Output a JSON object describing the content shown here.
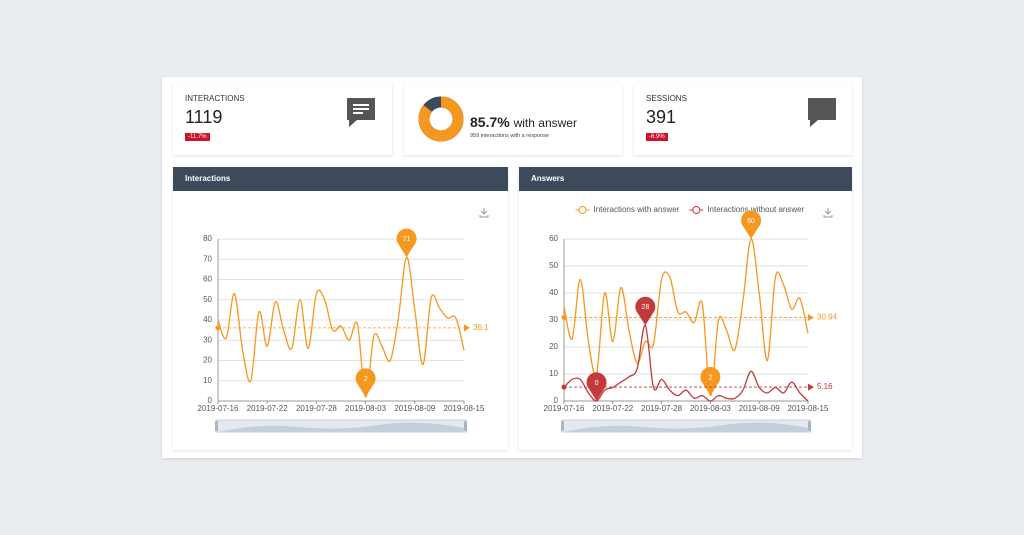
{
  "kpis": [
    {
      "label": "INTERACTIONS",
      "value": 1119,
      "change": "-11.7%"
    },
    {
      "percent": {
        "value": 85.7,
        "label": "85.7%"
      },
      "text": "with answer",
      "note": "959 interactions with a response"
    },
    {
      "label": "SESSIONS",
      "value": 391,
      "change": "-6.9%"
    }
  ],
  "chart_data": [
    {
      "type": "line",
      "title": "Interactions",
      "x": [
        "2019-07-16",
        "2019-07-17",
        "2019-07-18",
        "2019-07-19",
        "2019-07-20",
        "2019-07-21",
        "2019-07-22",
        "2019-07-23",
        "2019-07-24",
        "2019-07-25",
        "2019-07-26",
        "2019-07-27",
        "2019-07-28",
        "2019-07-29",
        "2019-07-30",
        "2019-07-31",
        "2019-08-01",
        "2019-08-02",
        "2019-08-03",
        "2019-08-04",
        "2019-08-05",
        "2019-08-06",
        "2019-08-07",
        "2019-08-08",
        "2019-08-09",
        "2019-08-10",
        "2019-08-11",
        "2019-08-12",
        "2019-08-13",
        "2019-08-14",
        "2019-08-15"
      ],
      "series": [
        {
          "color": "#f5981f",
          "average": 36.1,
          "values": [
            40,
            31,
            53,
            25,
            10,
            44,
            27,
            49,
            35,
            26,
            50,
            26,
            53,
            50,
            35,
            37,
            30,
            38,
            2,
            32,
            27,
            20,
            41,
            71,
            45,
            18,
            51,
            46,
            41,
            41,
            25
          ]
        }
      ],
      "xlim": [
        "2019-07-16",
        "2019-08-15"
      ],
      "xticks": [
        "2019-07-16",
        "2019-07-22",
        "2019-07-28",
        "2019-08-03",
        "2019-08-09",
        "2019-08-15"
      ],
      "ylim": [
        0,
        80
      ],
      "yticks": [
        0,
        10,
        20,
        30,
        40,
        50,
        60,
        70,
        80
      ],
      "grid": true
    },
    {
      "type": "line",
      "title": "Answers",
      "legend": "top",
      "x": [
        "2019-07-16",
        "2019-07-17",
        "2019-07-18",
        "2019-07-19",
        "2019-07-20",
        "2019-07-21",
        "2019-07-22",
        "2019-07-23",
        "2019-07-24",
        "2019-07-25",
        "2019-07-26",
        "2019-07-27",
        "2019-07-28",
        "2019-07-29",
        "2019-07-30",
        "2019-07-31",
        "2019-08-01",
        "2019-08-02",
        "2019-08-03",
        "2019-08-04",
        "2019-08-05",
        "2019-08-06",
        "2019-08-07",
        "2019-08-08",
        "2019-08-09",
        "2019-08-10",
        "2019-08-11",
        "2019-08-12",
        "2019-08-13",
        "2019-08-14",
        "2019-08-15"
      ],
      "series": [
        {
          "name": "Interactions with answer",
          "color": "#f5981f",
          "average": 30.94,
          "values": [
            35,
            23,
            45,
            22,
            10,
            40,
            22,
            42,
            26,
            14,
            22,
            21,
            45,
            46,
            33,
            33,
            29,
            36,
            2,
            30,
            26,
            19,
            37,
            60,
            40,
            15,
            46,
            43,
            34,
            38,
            25
          ]
        },
        {
          "name": "Interactions without answer",
          "color": "#c23a3a",
          "average": 5.16,
          "values": [
            5,
            8,
            8,
            3,
            0,
            4,
            5,
            7,
            9,
            12,
            28,
            5,
            8,
            4,
            2,
            4,
            1,
            2,
            0,
            2,
            1,
            1,
            4,
            11,
            5,
            3,
            5,
            3,
            7,
            3,
            0
          ]
        }
      ],
      "xlim": [
        "2019-07-16",
        "2019-08-15"
      ],
      "xticks": [
        "2019-07-16",
        "2019-07-22",
        "2019-07-28",
        "2019-08-03",
        "2019-08-09",
        "2019-08-15"
      ],
      "ylim": [
        0,
        60
      ],
      "yticks": [
        0,
        10,
        20,
        30,
        40,
        50,
        60
      ],
      "grid": true
    }
  ]
}
